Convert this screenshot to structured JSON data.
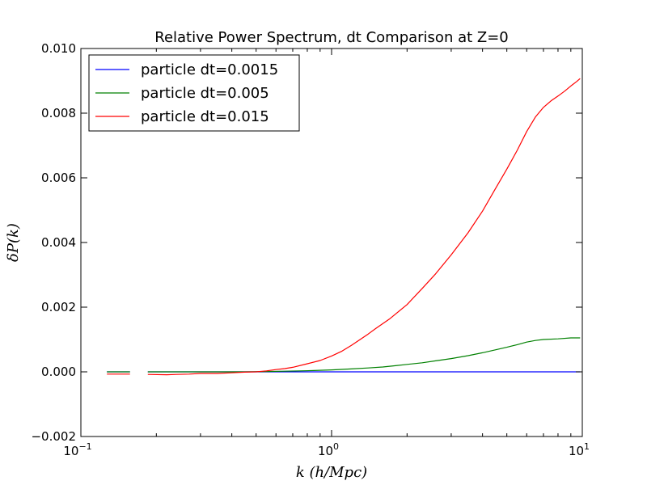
{
  "chart_data": {
    "type": "line",
    "title": "Relative Power Spectrum, dt Comparison at Z=0",
    "xlabel": "k (h/Mpc)",
    "ylabel": "δP(k)",
    "xscale": "log",
    "xlim": [
      0.1,
      10
    ],
    "ylim": [
      -0.002,
      0.01
    ],
    "grid": false,
    "legend_position": "top-left",
    "x_ticks": [
      {
        "value": 0.1,
        "base": "10",
        "exp": "−1"
      },
      {
        "value": 1,
        "base": "10",
        "exp": "0"
      },
      {
        "value": 10,
        "base": "10",
        "exp": "1"
      }
    ],
    "y_ticks": [
      {
        "value": -0.002,
        "label": "−0.002"
      },
      {
        "value": 0.0,
        "label": "0.000"
      },
      {
        "value": 0.002,
        "label": "0.002"
      },
      {
        "value": 0.004,
        "label": "0.004"
      },
      {
        "value": 0.006,
        "label": "0.006"
      },
      {
        "value": 0.008,
        "label": "0.008"
      },
      {
        "value": 0.01,
        "label": "0.010"
      }
    ],
    "series": [
      {
        "name": "particle dt=0.0015",
        "color": "#0000ff",
        "segments": [
          [
            [
              0.127,
              0.0
            ],
            [
              0.157,
              0.0
            ]
          ],
          [
            [
              0.185,
              0.0
            ],
            [
              0.25,
              0.0
            ],
            [
              0.35,
              0.0
            ],
            [
              0.5,
              0.0
            ],
            [
              0.7,
              0.0
            ],
            [
              1.0,
              0.0
            ],
            [
              1.5,
              0.0
            ],
            [
              2.0,
              0.0
            ],
            [
              3.0,
              0.0
            ],
            [
              4.0,
              0.0
            ],
            [
              5.0,
              0.0
            ],
            [
              6.0,
              0.0
            ],
            [
              7.0,
              0.0
            ],
            [
              8.0,
              0.0
            ],
            [
              9.0,
              0.0
            ],
            [
              9.8,
              0.0
            ]
          ]
        ]
      },
      {
        "name": "particle dt=0.005",
        "color": "#008000",
        "segments": [
          [
            [
              0.127,
              0.0
            ],
            [
              0.157,
              0.0
            ]
          ],
          [
            [
              0.185,
              0.0
            ],
            [
              0.25,
              0.0
            ],
            [
              0.35,
              0.0
            ],
            [
              0.45,
              0.0
            ],
            [
              0.55,
              1e-05
            ],
            [
              0.65,
              2e-05
            ],
            [
              0.75,
              3e-05
            ],
            [
              0.85,
              4e-05
            ],
            [
              1.0,
              6e-05
            ],
            [
              1.2,
              9e-05
            ],
            [
              1.4,
              0.00012
            ],
            [
              1.6,
              0.00015
            ],
            [
              1.8,
              0.00019
            ],
            [
              2.0,
              0.00023
            ],
            [
              2.3,
              0.00028
            ],
            [
              2.6,
              0.00034
            ],
            [
              3.0,
              0.00041
            ],
            [
              3.5,
              0.0005
            ],
            [
              4.0,
              0.00059
            ],
            [
              4.5,
              0.00068
            ],
            [
              5.0,
              0.00076
            ],
            [
              5.5,
              0.00084
            ],
            [
              6.0,
              0.00092
            ],
            [
              6.5,
              0.00097
            ],
            [
              7.0,
              0.001
            ],
            [
              8.0,
              0.00102
            ],
            [
              9.0,
              0.00105
            ],
            [
              9.8,
              0.00105
            ]
          ]
        ]
      },
      {
        "name": "particle dt=0.015",
        "color": "#ff0000",
        "segments": [
          [
            [
              0.127,
              -7e-05
            ],
            [
              0.157,
              -7e-05
            ]
          ],
          [
            [
              0.185,
              -8e-05
            ],
            [
              0.22,
              -9e-05
            ],
            [
              0.24,
              -8e-05
            ],
            [
              0.27,
              -7e-05
            ],
            [
              0.3,
              -5e-05
            ],
            [
              0.35,
              -5e-05
            ],
            [
              0.4,
              -3e-05
            ],
            [
              0.45,
              -1e-05
            ],
            [
              0.5,
              0.0
            ],
            [
              0.55,
              3e-05
            ],
            [
              0.6,
              7e-05
            ],
            [
              0.65,
              0.0001
            ],
            [
              0.7,
              0.00014
            ],
            [
              0.8,
              0.00025
            ],
            [
              0.9,
              0.00035
            ],
            [
              1.0,
              0.00049
            ],
            [
              1.1,
              0.00064
            ],
            [
              1.2,
              0.00082
            ],
            [
              1.3,
              0.001
            ],
            [
              1.4,
              0.00117
            ],
            [
              1.5,
              0.00134
            ],
            [
              1.7,
              0.00163
            ],
            [
              2.0,
              0.00208
            ],
            [
              2.3,
              0.00258
            ],
            [
              2.6,
              0.00303
            ],
            [
              3.0,
              0.00362
            ],
            [
              3.5,
              0.0043
            ],
            [
              4.0,
              0.00497
            ],
            [
              4.5,
              0.00566
            ],
            [
              5.0,
              0.00627
            ],
            [
              5.5,
              0.00685
            ],
            [
              6.0,
              0.00743
            ],
            [
              6.5,
              0.00788
            ],
            [
              7.0,
              0.00818
            ],
            [
              7.5,
              0.00838
            ],
            [
              8.0,
              0.00853
            ],
            [
              8.5,
              0.00868
            ],
            [
              9.0,
              0.00884
            ],
            [
              9.5,
              0.00898
            ],
            [
              9.8,
              0.00907
            ]
          ]
        ]
      }
    ]
  }
}
